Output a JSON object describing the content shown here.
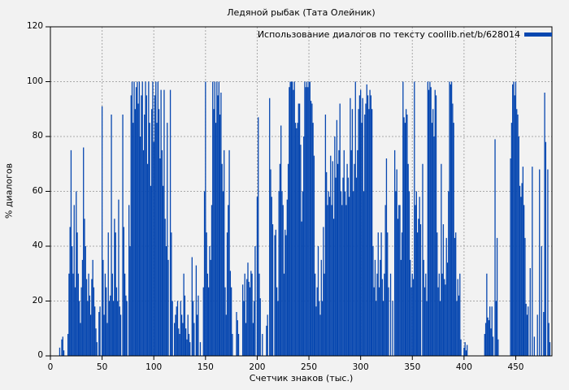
{
  "chart_data": {
    "type": "bar",
    "title": "Ледяной рыбак (Тата Олейник)",
    "legend": "Использование диалогов по тексту coollib.net/b/628014",
    "xlabel": "Счетчик знаков (тыс.)",
    "ylabel": "% диалогов",
    "xlim": [
      0,
      485
    ],
    "ylim": [
      0,
      120
    ],
    "x_ticks": [
      0,
      50,
      100,
      150,
      200,
      250,
      300,
      350,
      400,
      450
    ],
    "y_ticks": [
      0,
      20,
      40,
      60,
      80,
      100,
      120
    ],
    "grid": true,
    "legend_position": "top-right-inside",
    "colors": {
      "bar": "#0747b0",
      "grid": "#a9a9a9",
      "frame": "#000000",
      "background": "#f2f2f2",
      "text": "#000000"
    },
    "bars": [
      [
        9,
        3
      ],
      [
        11,
        6
      ],
      [
        12,
        7
      ],
      [
        13,
        2
      ],
      [
        17,
        8
      ],
      [
        18,
        30
      ],
      [
        19,
        47
      ],
      [
        20,
        75
      ],
      [
        21,
        40
      ],
      [
        22,
        30
      ],
      [
        23,
        55
      ],
      [
        24,
        25
      ],
      [
        25,
        60
      ],
      [
        26,
        45
      ],
      [
        27,
        30
      ],
      [
        28,
        20
      ],
      [
        29,
        12
      ],
      [
        30,
        25
      ],
      [
        31,
        35
      ],
      [
        32,
        76
      ],
      [
        33,
        50
      ],
      [
        34,
        40
      ],
      [
        35,
        28
      ],
      [
        36,
        20
      ],
      [
        37,
        30
      ],
      [
        38,
        22
      ],
      [
        39,
        15
      ],
      [
        40,
        28
      ],
      [
        41,
        35
      ],
      [
        42,
        25
      ],
      [
        43,
        18
      ],
      [
        44,
        10
      ],
      [
        45,
        5
      ],
      [
        47,
        16
      ],
      [
        48,
        18
      ],
      [
        50,
        91
      ],
      [
        51,
        35
      ],
      [
        52,
        15
      ],
      [
        53,
        30
      ],
      [
        54,
        25
      ],
      [
        55,
        12
      ],
      [
        56,
        45
      ],
      [
        57,
        20
      ],
      [
        58,
        22
      ],
      [
        59,
        88
      ],
      [
        60,
        30
      ],
      [
        61,
        20
      ],
      [
        62,
        50
      ],
      [
        63,
        45
      ],
      [
        64,
        25
      ],
      [
        65,
        20
      ],
      [
        66,
        57
      ],
      [
        67,
        18
      ],
      [
        68,
        15
      ],
      [
        70,
        88
      ],
      [
        71,
        47
      ],
      [
        72,
        30
      ],
      [
        73,
        22
      ],
      [
        74,
        20
      ],
      [
        76,
        55
      ],
      [
        77,
        40
      ],
      [
        78,
        95
      ],
      [
        79,
        100
      ],
      [
        80,
        85
      ],
      [
        81,
        100
      ],
      [
        82,
        90
      ],
      [
        83,
        98
      ],
      [
        84,
        100
      ],
      [
        85,
        92
      ],
      [
        86,
        100
      ],
      [
        87,
        80
      ],
      [
        88,
        95
      ],
      [
        89,
        100
      ],
      [
        90,
        75
      ],
      [
        91,
        88
      ],
      [
        92,
        100
      ],
      [
        93,
        95
      ],
      [
        94,
        70
      ],
      [
        95,
        100
      ],
      [
        96,
        85
      ],
      [
        97,
        62
      ],
      [
        98,
        90
      ],
      [
        99,
        100
      ],
      [
        100,
        78
      ],
      [
        101,
        95
      ],
      [
        102,
        100
      ],
      [
        103,
        85
      ],
      [
        104,
        100
      ],
      [
        105,
        90
      ],
      [
        106,
        72
      ],
      [
        107,
        97
      ],
      [
        108,
        75
      ],
      [
        109,
        62
      ],
      [
        110,
        97
      ],
      [
        111,
        50
      ],
      [
        112,
        40
      ],
      [
        113,
        85
      ],
      [
        114,
        35
      ],
      [
        116,
        97
      ],
      [
        117,
        45
      ],
      [
        118,
        20
      ],
      [
        120,
        12
      ],
      [
        121,
        15
      ],
      [
        122,
        18
      ],
      [
        123,
        20
      ],
      [
        124,
        10
      ],
      [
        125,
        8
      ],
      [
        126,
        20
      ],
      [
        127,
        15
      ],
      [
        128,
        12
      ],
      [
        129,
        30
      ],
      [
        130,
        22
      ],
      [
        131,
        10
      ],
      [
        132,
        6
      ],
      [
        133,
        15
      ],
      [
        134,
        8
      ],
      [
        135,
        5
      ],
      [
        137,
        36
      ],
      [
        138,
        20
      ],
      [
        139,
        12
      ],
      [
        141,
        33
      ],
      [
        142,
        15
      ],
      [
        143,
        22
      ],
      [
        145,
        5
      ],
      [
        148,
        25
      ],
      [
        149,
        60
      ],
      [
        150,
        100
      ],
      [
        151,
        45
      ],
      [
        152,
        30
      ],
      [
        153,
        25
      ],
      [
        154,
        40
      ],
      [
        155,
        35
      ],
      [
        156,
        55
      ],
      [
        157,
        100
      ],
      [
        158,
        90
      ],
      [
        159,
        100
      ],
      [
        160,
        85
      ],
      [
        161,
        100
      ],
      [
        162,
        95
      ],
      [
        163,
        100
      ],
      [
        164,
        88
      ],
      [
        165,
        96
      ],
      [
        166,
        70
      ],
      [
        167,
        60
      ],
      [
        168,
        75
      ],
      [
        169,
        25
      ],
      [
        170,
        15
      ],
      [
        171,
        45
      ],
      [
        172,
        55
      ],
      [
        173,
        75
      ],
      [
        174,
        31
      ],
      [
        175,
        25
      ],
      [
        176,
        8
      ],
      [
        180,
        16
      ],
      [
        181,
        13
      ],
      [
        182,
        8
      ],
      [
        186,
        26
      ],
      [
        187,
        20
      ],
      [
        188,
        30
      ],
      [
        189,
        12
      ],
      [
        190,
        28
      ],
      [
        191,
        34
      ],
      [
        192,
        27
      ],
      [
        193,
        25
      ],
      [
        194,
        31
      ],
      [
        195,
        30
      ],
      [
        196,
        12
      ],
      [
        197,
        20
      ],
      [
        198,
        40
      ],
      [
        200,
        58
      ],
      [
        201,
        87
      ],
      [
        202,
        30
      ],
      [
        203,
        21
      ],
      [
        205,
        8
      ],
      [
        209,
        11
      ],
      [
        210,
        15
      ],
      [
        212,
        94
      ],
      [
        213,
        68
      ],
      [
        214,
        58
      ],
      [
        215,
        48
      ],
      [
        217,
        44
      ],
      [
        218,
        46
      ],
      [
        219,
        25
      ],
      [
        220,
        20
      ],
      [
        221,
        60
      ],
      [
        222,
        70
      ],
      [
        223,
        84
      ],
      [
        224,
        60
      ],
      [
        225,
        55
      ],
      [
        226,
        30
      ],
      [
        227,
        46
      ],
      [
        228,
        44
      ],
      [
        229,
        57
      ],
      [
        230,
        70
      ],
      [
        231,
        98
      ],
      [
        232,
        100
      ],
      [
        233,
        100
      ],
      [
        234,
        100
      ],
      [
        235,
        97
      ],
      [
        236,
        100
      ],
      [
        237,
        85
      ],
      [
        238,
        83
      ],
      [
        239,
        85
      ],
      [
        240,
        92
      ],
      [
        241,
        92
      ],
      [
        242,
        77
      ],
      [
        243,
        49
      ],
      [
        244,
        60
      ],
      [
        245,
        80
      ],
      [
        246,
        100
      ],
      [
        247,
        98
      ],
      [
        248,
        100
      ],
      [
        249,
        98
      ],
      [
        250,
        100
      ],
      [
        251,
        100
      ],
      [
        252,
        93
      ],
      [
        253,
        92
      ],
      [
        254,
        85
      ],
      [
        255,
        73
      ],
      [
        256,
        30
      ],
      [
        257,
        18
      ],
      [
        258,
        25
      ],
      [
        259,
        40
      ],
      [
        260,
        20
      ],
      [
        261,
        15
      ],
      [
        262,
        35
      ],
      [
        263,
        20
      ],
      [
        264,
        47
      ],
      [
        265,
        30
      ],
      [
        266,
        88
      ],
      [
        267,
        67
      ],
      [
        268,
        55
      ],
      [
        269,
        60
      ],
      [
        270,
        58
      ],
      [
        271,
        73
      ],
      [
        272,
        55
      ],
      [
        273,
        71
      ],
      [
        274,
        50
      ],
      [
        275,
        80
      ],
      [
        276,
        65
      ],
      [
        277,
        86
      ],
      [
        278,
        70
      ],
      [
        279,
        75
      ],
      [
        280,
        92
      ],
      [
        281,
        60
      ],
      [
        282,
        55
      ],
      [
        283,
        65
      ],
      [
        284,
        75
      ],
      [
        285,
        60
      ],
      [
        286,
        55
      ],
      [
        287,
        70
      ],
      [
        288,
        65
      ],
      [
        289,
        58
      ],
      [
        290,
        94
      ],
      [
        291,
        75
      ],
      [
        292,
        90
      ],
      [
        293,
        60
      ],
      [
        294,
        70
      ],
      [
        295,
        100
      ],
      [
        296,
        65
      ],
      [
        297,
        75
      ],
      [
        298,
        90
      ],
      [
        299,
        95
      ],
      [
        300,
        97
      ],
      [
        301,
        85
      ],
      [
        302,
        94
      ],
      [
        303,
        60
      ],
      [
        304,
        88
      ],
      [
        305,
        92
      ],
      [
        306,
        99
      ],
      [
        307,
        95
      ],
      [
        308,
        90
      ],
      [
        309,
        97
      ],
      [
        310,
        95
      ],
      [
        311,
        90
      ],
      [
        312,
        40
      ],
      [
        313,
        25
      ],
      [
        314,
        35
      ],
      [
        315,
        20
      ],
      [
        316,
        30
      ],
      [
        317,
        45
      ],
      [
        318,
        25
      ],
      [
        319,
        35
      ],
      [
        320,
        45
      ],
      [
        321,
        28
      ],
      [
        322,
        20
      ],
      [
        323,
        30
      ],
      [
        324,
        55
      ],
      [
        325,
        72
      ],
      [
        326,
        45
      ],
      [
        327,
        25
      ],
      [
        329,
        30
      ],
      [
        331,
        20
      ],
      [
        333,
        75
      ],
      [
        334,
        60
      ],
      [
        335,
        68
      ],
      [
        336,
        50
      ],
      [
        337,
        55
      ],
      [
        338,
        55
      ],
      [
        339,
        35
      ],
      [
        340,
        45
      ],
      [
        341,
        100
      ],
      [
        342,
        87
      ],
      [
        343,
        85
      ],
      [
        344,
        90
      ],
      [
        345,
        88
      ],
      [
        346,
        70
      ],
      [
        347,
        60
      ],
      [
        348,
        35
      ],
      [
        349,
        25
      ],
      [
        350,
        30
      ],
      [
        351,
        28
      ],
      [
        352,
        100
      ],
      [
        353,
        55
      ],
      [
        354,
        60
      ],
      [
        355,
        45
      ],
      [
        356,
        50
      ],
      [
        357,
        58
      ],
      [
        358,
        48
      ],
      [
        360,
        70
      ],
      [
        361,
        35
      ],
      [
        362,
        25
      ],
      [
        363,
        30
      ],
      [
        364,
        20
      ],
      [
        365,
        100
      ],
      [
        366,
        97
      ],
      [
        367,
        100
      ],
      [
        368,
        98
      ],
      [
        369,
        85
      ],
      [
        370,
        90
      ],
      [
        371,
        80
      ],
      [
        372,
        97
      ],
      [
        373,
        95
      ],
      [
        374,
        45
      ],
      [
        375,
        25
      ],
      [
        376,
        30
      ],
      [
        377,
        20
      ],
      [
        378,
        70
      ],
      [
        379,
        30
      ],
      [
        380,
        48
      ],
      [
        381,
        28
      ],
      [
        382,
        26
      ],
      [
        383,
        43
      ],
      [
        384,
        34
      ],
      [
        385,
        60
      ],
      [
        386,
        100
      ],
      [
        387,
        99
      ],
      [
        388,
        100
      ],
      [
        389,
        92
      ],
      [
        390,
        85
      ],
      [
        391,
        43
      ],
      [
        392,
        45
      ],
      [
        393,
        20
      ],
      [
        394,
        28
      ],
      [
        395,
        22
      ],
      [
        396,
        30
      ],
      [
        397,
        6
      ],
      [
        400,
        3
      ],
      [
        401,
        5
      ],
      [
        402,
        2
      ],
      [
        403,
        4
      ],
      [
        420,
        8
      ],
      [
        421,
        12
      ],
      [
        422,
        30
      ],
      [
        423,
        14
      ],
      [
        424,
        13
      ],
      [
        425,
        18
      ],
      [
        426,
        10
      ],
      [
        427,
        18
      ],
      [
        428,
        7
      ],
      [
        430,
        79
      ],
      [
        431,
        20
      ],
      [
        432,
        43
      ],
      [
        433,
        6
      ],
      [
        445,
        72
      ],
      [
        446,
        85
      ],
      [
        447,
        99
      ],
      [
        448,
        100
      ],
      [
        449,
        95
      ],
      [
        450,
        100
      ],
      [
        451,
        90
      ],
      [
        452,
        88
      ],
      [
        453,
        80
      ],
      [
        454,
        62
      ],
      [
        455,
        58
      ],
      [
        456,
        63
      ],
      [
        457,
        69
      ],
      [
        458,
        55
      ],
      [
        459,
        43
      ],
      [
        460,
        19
      ],
      [
        461,
        15
      ],
      [
        462,
        18
      ],
      [
        464,
        32
      ],
      [
        466,
        69
      ],
      [
        468,
        7
      ],
      [
        471,
        15
      ],
      [
        473,
        68
      ],
      [
        475,
        40
      ],
      [
        477,
        16
      ],
      [
        478,
        96
      ],
      [
        479,
        78
      ],
      [
        481,
        68
      ],
      [
        482,
        12
      ],
      [
        483,
        5
      ]
    ]
  }
}
